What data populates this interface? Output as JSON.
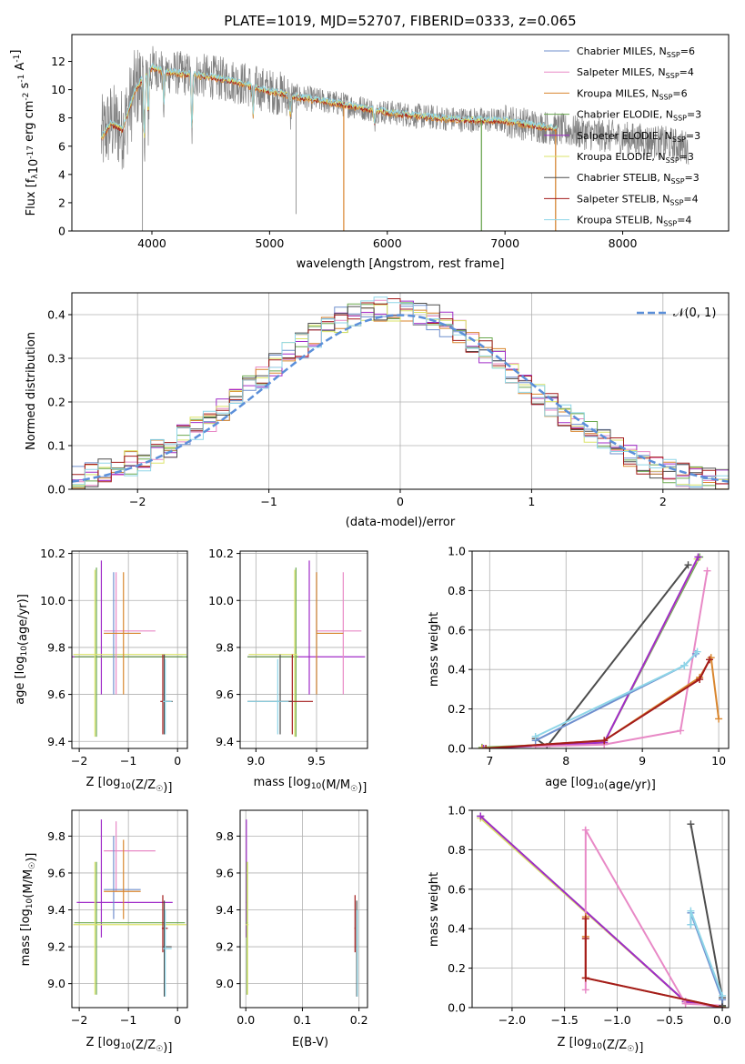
{
  "figure": {
    "title": "PLATE=1019, MJD=52707, FIBERID=0333, z=0.065"
  },
  "series": [
    {
      "key": "chab_miles",
      "label": "Chabrier MILES, N",
      "sub": "SSP",
      "suffix": "=6",
      "color": "#6f8fce"
    },
    {
      "key": "salp_miles",
      "label": "Salpeter MILES, N",
      "sub": "SSP",
      "suffix": "=4",
      "color": "#e889c6"
    },
    {
      "key": "krou_miles",
      "label": "Kroupa MILES, N",
      "sub": "SSP",
      "suffix": "=6",
      "color": "#d9862e"
    },
    {
      "key": "chab_elodie",
      "label": "Chabrier ELODIE, N",
      "sub": "SSP",
      "suffix": "=3",
      "color": "#6aa84f"
    },
    {
      "key": "salp_elodie",
      "label": "Salpeter ELODIE, N",
      "sub": "SSP",
      "suffix": "=3",
      "color": "#a02cc8"
    },
    {
      "key": "krou_elodie",
      "label": "Kroupa ELODIE, N",
      "sub": "SSP",
      "suffix": "=3",
      "color": "#dbe36a"
    },
    {
      "key": "chab_stelib",
      "label": "Chabrier STELIB, N",
      "sub": "SSP",
      "suffix": "=3",
      "color": "#4d4d4d"
    },
    {
      "key": "salp_stelib",
      "label": "Salpeter STELIB, N",
      "sub": "SSP",
      "suffix": "=4",
      "color": "#a31b1b"
    },
    {
      "key": "krou_stelib",
      "label": "Kroupa STELIB, N",
      "sub": "SSP",
      "suffix": "=4",
      "color": "#8fd6e8"
    }
  ],
  "chart_data": [
    {
      "id": "spectrum",
      "type": "line",
      "xlabel": "wavelength [Angstrom, rest frame]",
      "ylabel": "Flux [f_λ10^-17 erg cm^-2 s^-1 A^-1]",
      "xlim": [
        3320,
        8900
      ],
      "ylim": [
        0,
        13.9
      ],
      "xticks": [
        4000,
        5000,
        6000,
        7000,
        8000
      ],
      "yticks": [
        0,
        2,
        4,
        6,
        8,
        10,
        12
      ],
      "grid": false,
      "legend": "top-right",
      "data_color": "#808080",
      "continuum": {
        "x": [
          3570,
          3650,
          3750,
          3850,
          3900,
          4000,
          4100,
          4300,
          4500,
          4700,
          5000,
          5300,
          5600,
          6000,
          6300,
          6600,
          7000,
          7300,
          7600,
          8000,
          8400,
          8560
        ],
        "y": [
          6.6,
          7.6,
          7.2,
          9.8,
          10.5,
          11.6,
          11.3,
          11.1,
          10.9,
          10.6,
          9.9,
          9.4,
          9.0,
          8.4,
          8.1,
          7.9,
          7.8,
          7.4,
          7.0,
          6.6,
          6.2,
          5.9
        ]
      },
      "absorption_features": {
        "x": [
          3934,
          3969,
          4102,
          4340,
          4861,
          5175,
          5890
        ],
        "depth": [
          4.5,
          3.0,
          2.5,
          4.0,
          2.0,
          1.5,
          1.0
        ]
      },
      "spikes": {
        "x": [
          3920,
          5225,
          5630,
          6800,
          7430
        ],
        "y": [
          0,
          1.2,
          0,
          0,
          0
        ]
      }
    },
    {
      "id": "residuals",
      "type": "line",
      "xlabel": "(data-model)/error",
      "ylabel": "Normed distribution",
      "xlim": [
        -2.5,
        2.5
      ],
      "ylim": [
        0,
        0.45
      ],
      "xticks": [
        -2,
        -1,
        0,
        1,
        2
      ],
      "yticks": [
        0.0,
        0.1,
        0.2,
        0.3,
        0.4
      ],
      "grid": true,
      "legend": "top-right",
      "gaussian": {
        "label": "𝒩(0, 1)",
        "mean": 0,
        "sigma": 1,
        "color": "#5b8fd9"
      },
      "bin_edges_start": -2.5,
      "bin_width": 0.1,
      "n_bins": 50
    },
    {
      "id": "age_vs_Z",
      "type": "scatter",
      "xlabel": "Z [log10(Z/Z☉)]",
      "ylabel": "age  [log10(age/yr)]",
      "xlim": [
        -2.15,
        0.2
      ],
      "ylim": [
        9.37,
        10.21
      ],
      "xticks": [
        -2,
        -1,
        0
      ],
      "yticks": [
        9.4,
        9.6,
        9.8,
        10.0,
        10.2
      ],
      "grid": true,
      "points": [
        {
          "s": "salp_elodie",
          "x": -1.55,
          "y": 9.76,
          "xe": [
            -2.15,
            0.1
          ],
          "ye": [
            9.6,
            10.17
          ]
        },
        {
          "s": "chab_elodie",
          "x": -1.65,
          "y": 9.76,
          "xe": [
            -2.1,
            0.2
          ],
          "ye": [
            9.42,
            10.14
          ]
        },
        {
          "s": "krou_elodie",
          "x": -1.68,
          "y": 9.77,
          "xe": [
            -2.12,
            0.18
          ],
          "ye": [
            9.42,
            10.13
          ]
        },
        {
          "s": "salp_miles",
          "x": -1.25,
          "y": 9.87,
          "xe": [
            -1.5,
            -0.45
          ],
          "ye": [
            9.6,
            10.12
          ]
        },
        {
          "s": "chab_miles",
          "x": -1.3,
          "y": 9.86,
          "xe": [
            -1.5,
            -0.75
          ],
          "ye": [
            9.6,
            10.12
          ]
        },
        {
          "s": "krou_miles",
          "x": -1.1,
          "y": 9.86,
          "xe": [
            -1.5,
            -0.75
          ],
          "ye": [
            9.6,
            10.12
          ]
        },
        {
          "s": "salp_stelib",
          "x": -0.3,
          "y": 9.57,
          "xe": [
            -0.35,
            -0.15
          ],
          "ye": [
            9.43,
            9.77
          ]
        },
        {
          "s": "chab_stelib",
          "x": -0.27,
          "y": 9.57,
          "xe": [
            -0.3,
            -0.1
          ],
          "ye": [
            9.43,
            9.77
          ]
        },
        {
          "s": "krou_stelib",
          "x": -0.25,
          "y": 9.57,
          "xe": [
            -0.3,
            -0.12
          ],
          "ye": [
            9.43,
            9.75
          ]
        }
      ]
    },
    {
      "id": "age_vs_mass",
      "type": "scatter",
      "xlabel": "mass [log10(M/M☉)]",
      "ylabel": "",
      "xlim": [
        8.87,
        9.92
      ],
      "ylim": [
        9.37,
        10.21
      ],
      "xticks": [
        9.0,
        9.5
      ],
      "yticks": [
        9.4,
        9.6,
        9.8,
        10.0,
        10.2
      ],
      "grid": true,
      "points": [
        {
          "s": "salp_elodie",
          "x": 9.44,
          "y": 9.76,
          "xe": [
            8.93,
            9.9
          ],
          "ye": [
            9.6,
            10.17
          ]
        },
        {
          "s": "chab_elodie",
          "x": 9.33,
          "y": 9.76,
          "xe": [
            8.93,
            9.35
          ],
          "ye": [
            9.42,
            10.14
          ]
        },
        {
          "s": "krou_elodie",
          "x": 9.32,
          "y": 9.77,
          "xe": [
            8.94,
            9.34
          ],
          "ye": [
            9.42,
            10.13
          ]
        },
        {
          "s": "salp_miles",
          "x": 9.72,
          "y": 9.87,
          "xe": [
            9.5,
            9.87
          ],
          "ye": [
            9.6,
            10.12
          ]
        },
        {
          "s": "chab_miles",
          "x": 9.5,
          "y": 9.86,
          "xe": [
            9.5,
            9.72
          ],
          "ye": [
            9.6,
            10.12
          ]
        },
        {
          "s": "krou_miles",
          "x": 9.5,
          "y": 9.86,
          "xe": [
            9.5,
            9.72
          ],
          "ye": [
            9.6,
            10.12
          ]
        },
        {
          "s": "salp_stelib",
          "x": 9.3,
          "y": 9.57,
          "xe": [
            9.2,
            9.47
          ],
          "ye": [
            9.43,
            9.77
          ]
        },
        {
          "s": "chab_stelib",
          "x": 9.2,
          "y": 9.57,
          "xe": [
            8.93,
            9.3
          ],
          "ye": [
            9.43,
            9.77
          ]
        },
        {
          "s": "krou_stelib",
          "x": 9.18,
          "y": 9.57,
          "xe": [
            8.93,
            9.27
          ],
          "ye": [
            9.43,
            9.75
          ]
        }
      ]
    },
    {
      "id": "weight_vs_age",
      "type": "line",
      "xlabel": "age  [log10(age/yr)]",
      "ylabel": "mass weight",
      "xlim": [
        6.77,
        10.13
      ],
      "ylim": [
        0,
        1.0
      ],
      "xticks": [
        7,
        8,
        9,
        10
      ],
      "yticks": [
        0.0,
        0.2,
        0.4,
        0.6,
        0.8,
        1.0
      ],
      "grid": true,
      "lines": [
        {
          "s": "chab_elodie",
          "x": [
            6.9,
            8.5,
            9.75
          ],
          "y": [
            0.005,
            0.03,
            0.97
          ]
        },
        {
          "s": "krou_elodie",
          "x": [
            6.9,
            8.5,
            9.72
          ],
          "y": [
            0.0,
            0.03,
            0.96
          ]
        },
        {
          "s": "salp_elodie",
          "x": [
            6.92,
            8.5,
            9.73
          ],
          "y": [
            0.0,
            0.03,
            0.97
          ]
        },
        {
          "s": "chab_stelib",
          "x": [
            7.6,
            7.75,
            9.6
          ],
          "y": [
            0.05,
            0.01,
            0.93
          ]
        },
        {
          "s": "salp_miles",
          "x": [
            7.6,
            8.5,
            9.5,
            9.85
          ],
          "y": [
            0.01,
            0.02,
            0.09,
            0.9
          ]
        },
        {
          "s": "krou_miles",
          "x": [
            6.9,
            8.5,
            9.75,
            9.9,
            10.0
          ],
          "y": [
            0.0,
            0.04,
            0.36,
            0.46,
            0.15
          ]
        },
        {
          "s": "salp_stelib",
          "x": [
            6.95,
            8.5,
            9.75,
            9.88
          ],
          "y": [
            0.0,
            0.04,
            0.35,
            0.45
          ]
        },
        {
          "s": "chab_miles",
          "x": [
            7.6,
            9.55,
            9.7
          ],
          "y": [
            0.04,
            0.42,
            0.48
          ]
        },
        {
          "s": "krou_stelib",
          "x": [
            7.6,
            9.55,
            9.72
          ],
          "y": [
            0.06,
            0.42,
            0.49
          ]
        }
      ]
    },
    {
      "id": "mass_vs_Z",
      "type": "scatter",
      "xlabel": "Z [log10(Z/Z☉)]",
      "ylabel": "mass [log10(M/M☉)]",
      "xlim": [
        -2.15,
        0.2
      ],
      "ylim": [
        8.87,
        9.94
      ],
      "xticks": [
        -2,
        -1,
        0
      ],
      "yticks": [
        9.0,
        9.2,
        9.4,
        9.6,
        9.8
      ],
      "grid": true,
      "points": [
        {
          "s": "salp_elodie",
          "x": -1.55,
          "y": 9.44,
          "xe": [
            -2.05,
            -0.1
          ],
          "ye": [
            9.25,
            9.89
          ]
        },
        {
          "s": "chab_elodie",
          "x": -1.65,
          "y": 9.33,
          "xe": [
            -2.1,
            0.15
          ],
          "ye": [
            8.94,
            9.66
          ]
        },
        {
          "s": "krou_elodie",
          "x": -1.68,
          "y": 9.32,
          "xe": [
            -2.12,
            0.18
          ],
          "ye": [
            8.94,
            9.66
          ]
        },
        {
          "s": "salp_miles",
          "x": -1.25,
          "y": 9.72,
          "xe": [
            -1.5,
            -0.45
          ],
          "ye": [
            9.5,
            9.88
          ]
        },
        {
          "s": "chab_miles",
          "x": -1.3,
          "y": 9.51,
          "xe": [
            -1.5,
            -0.75
          ],
          "ye": [
            9.35,
            9.8
          ]
        },
        {
          "s": "krou_miles",
          "x": -1.1,
          "y": 9.5,
          "xe": [
            -1.5,
            -0.75
          ],
          "ye": [
            9.35,
            9.78
          ]
        },
        {
          "s": "salp_stelib",
          "x": -0.3,
          "y": 9.3,
          "xe": [
            -0.32,
            -0.2
          ],
          "ye": [
            9.17,
            9.48
          ]
        },
        {
          "s": "chab_stelib",
          "x": -0.27,
          "y": 9.2,
          "xe": [
            -0.3,
            -0.12
          ],
          "ye": [
            8.93,
            9.45
          ]
        },
        {
          "s": "krou_stelib",
          "x": -0.25,
          "y": 9.19,
          "xe": [
            -0.3,
            -0.12
          ],
          "ye": [
            8.93,
            9.4
          ]
        }
      ]
    },
    {
      "id": "mass_vs_ebv",
      "type": "scatter",
      "xlabel": "E(B-V)",
      "ylabel": "",
      "xlim": [
        -0.01,
        0.215
      ],
      "ylim": [
        8.87,
        9.94
      ],
      "xticks": [
        0.0,
        0.1,
        0.2
      ],
      "yticks": [
        9.0,
        9.2,
        9.4,
        9.6,
        9.8
      ],
      "grid": true,
      "points": [
        {
          "s": "salp_elodie",
          "x": 0.001,
          "y": 9.44,
          "xe": [
            0,
            0.002
          ],
          "ye": [
            9.25,
            9.89
          ]
        },
        {
          "s": "chab_elodie",
          "x": 0.002,
          "y": 9.33,
          "xe": [
            0,
            0.004
          ],
          "ye": [
            8.94,
            9.66
          ]
        },
        {
          "s": "krou_elodie",
          "x": 0.003,
          "y": 9.32,
          "xe": [
            0,
            0.005
          ],
          "ye": [
            8.94,
            9.66
          ]
        },
        {
          "s": "salp_stelib",
          "x": 0.193,
          "y": 9.3,
          "xe": [
            0.192,
            0.194
          ],
          "ye": [
            9.17,
            9.48
          ]
        },
        {
          "s": "chab_stelib",
          "x": 0.196,
          "y": 9.2,
          "xe": [
            0.195,
            0.197
          ],
          "ye": [
            8.93,
            9.45
          ]
        },
        {
          "s": "krou_stelib",
          "x": 0.197,
          "y": 9.19,
          "xe": [
            0.196,
            0.198
          ],
          "ye": [
            8.93,
            9.4
          ]
        }
      ]
    },
    {
      "id": "weight_vs_Z",
      "type": "line",
      "xlabel": "Z [log10(Z/Z☉)]",
      "ylabel": "mass weight",
      "xlim": [
        -2.38,
        0.06
      ],
      "ylim": [
        0,
        1.0
      ],
      "xticks": [
        -2.0,
        -1.5,
        -1.0,
        -0.5,
        0.0
      ],
      "yticks": [
        0.0,
        0.2,
        0.4,
        0.6,
        0.8,
        1.0
      ],
      "grid": true,
      "lines": [
        {
          "s": "chab_elodie",
          "x": [
            -2.3,
            -0.35,
            0.0
          ],
          "y": [
            0.97,
            0.03,
            0.005
          ]
        },
        {
          "s": "krou_elodie",
          "x": [
            -2.3,
            -0.35,
            0.0
          ],
          "y": [
            0.96,
            0.03,
            0.0
          ]
        },
        {
          "s": "salp_elodie",
          "x": [
            -2.3,
            -0.35,
            0.0
          ],
          "y": [
            0.97,
            0.03,
            0.0
          ]
        },
        {
          "s": "salp_miles",
          "x": [
            -1.3,
            -1.3,
            -0.35,
            0.0
          ],
          "y": [
            0.09,
            0.9,
            0.02,
            0.01
          ]
        },
        {
          "s": "krou_miles",
          "x": [
            -1.3,
            -1.3,
            -1.3,
            -1.3,
            0.0
          ],
          "y": [
            0.15,
            0.36,
            0.46,
            0.15,
            0.0
          ]
        },
        {
          "s": "salp_stelib",
          "x": [
            -1.3,
            -1.3,
            -1.3,
            0.0
          ],
          "y": [
            0.35,
            0.45,
            0.15,
            0.0
          ]
        },
        {
          "s": "chab_stelib",
          "x": [
            -0.3,
            0.0,
            0.0
          ],
          "y": [
            0.93,
            0.05,
            0.01
          ]
        },
        {
          "s": "chab_miles",
          "x": [
            -0.3,
            -0.3,
            0.0
          ],
          "y": [
            0.42,
            0.48,
            0.04
          ]
        },
        {
          "s": "krou_stelib",
          "x": [
            -0.3,
            -0.3,
            0.0
          ],
          "y": [
            0.42,
            0.49,
            0.06
          ]
        }
      ]
    }
  ]
}
